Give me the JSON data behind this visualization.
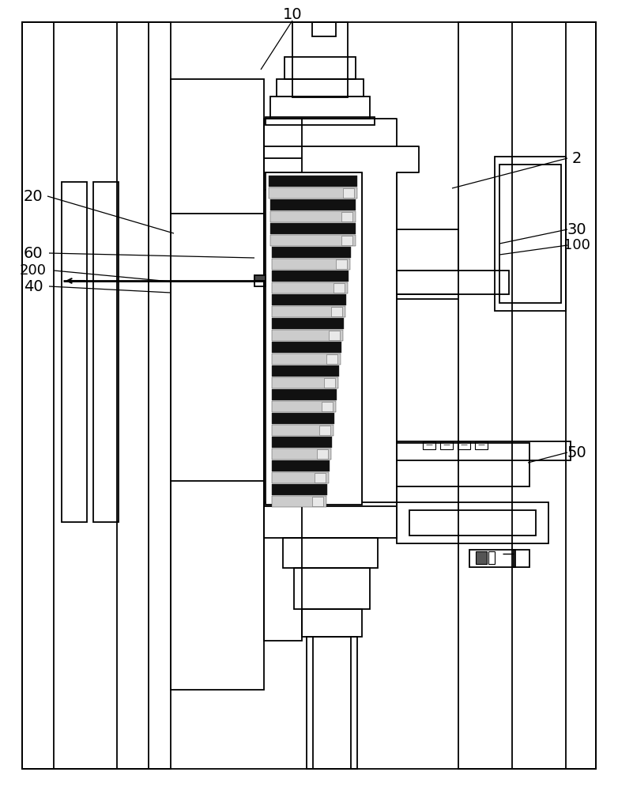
{
  "bg_color": "#ffffff",
  "line_color": "#000000",
  "lw": 1.3,
  "lw_thin": 0.7,
  "lw_thick": 2.0
}
